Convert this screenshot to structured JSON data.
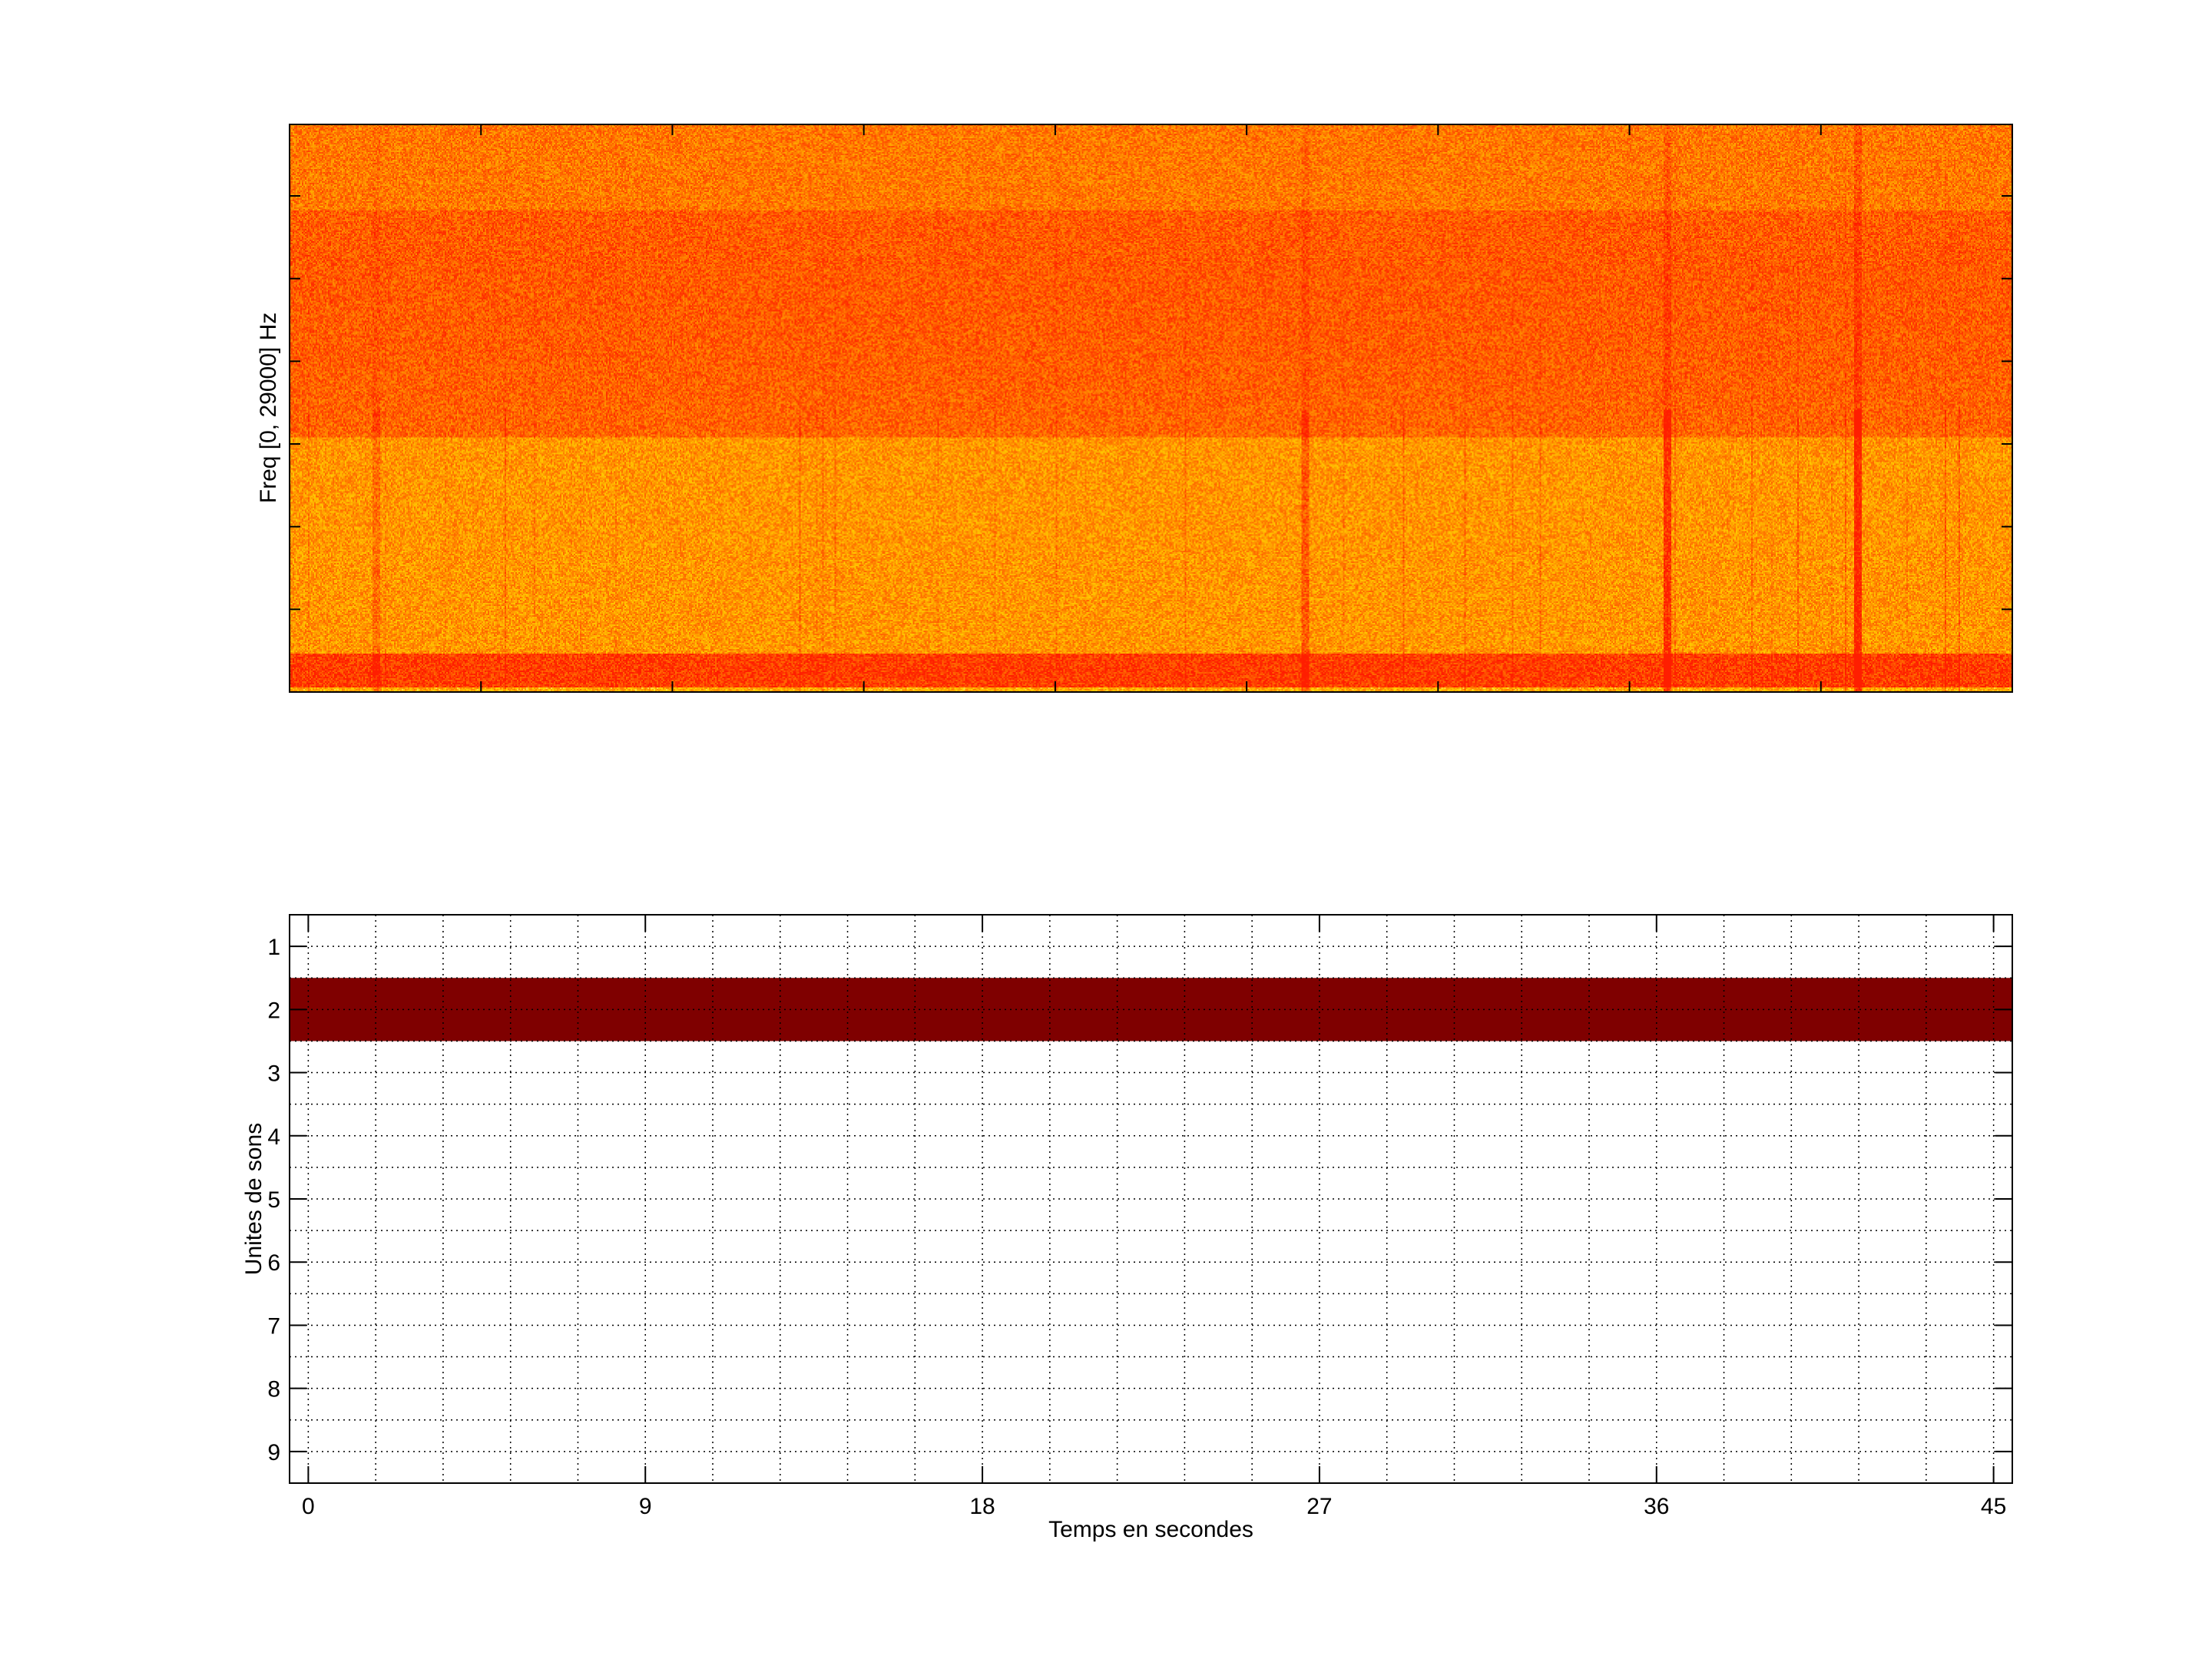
{
  "chart_data": [
    {
      "type": "heatmap",
      "title": "",
      "xlabel": "",
      "ylabel": "Freq [0, 29000] Hz",
      "xlim": [
        -0.5,
        45.5
      ],
      "ylim": [
        0,
        29000
      ],
      "colormap": "hot",
      "description_colors": {
        "high": "#ff0000",
        "mid": "#ff8000",
        "low": "#ffd000"
      }
    },
    {
      "type": "bar",
      "title": "",
      "xlabel": "Temps en secondes",
      "ylabel": "Unites de sons",
      "xlim": [
        -0.5,
        45.5
      ],
      "ylim": [
        0.5,
        9.5
      ],
      "y_reversed": true,
      "xticks": [
        0,
        9,
        18,
        27,
        36,
        45
      ],
      "xtick_labels": [
        "0",
        "9",
        "18",
        "27",
        "36",
        "45"
      ],
      "yticks": [
        1,
        2,
        3,
        4,
        5,
        6,
        7,
        8,
        9
      ],
      "ytick_labels": [
        "1",
        "2",
        "3",
        "4",
        "5",
        "6",
        "7",
        "8",
        "9"
      ],
      "grid": true,
      "segments": [
        {
          "unit": 2,
          "start": -0.5,
          "end": 45.5,
          "color": "#7f0000"
        }
      ]
    }
  ]
}
